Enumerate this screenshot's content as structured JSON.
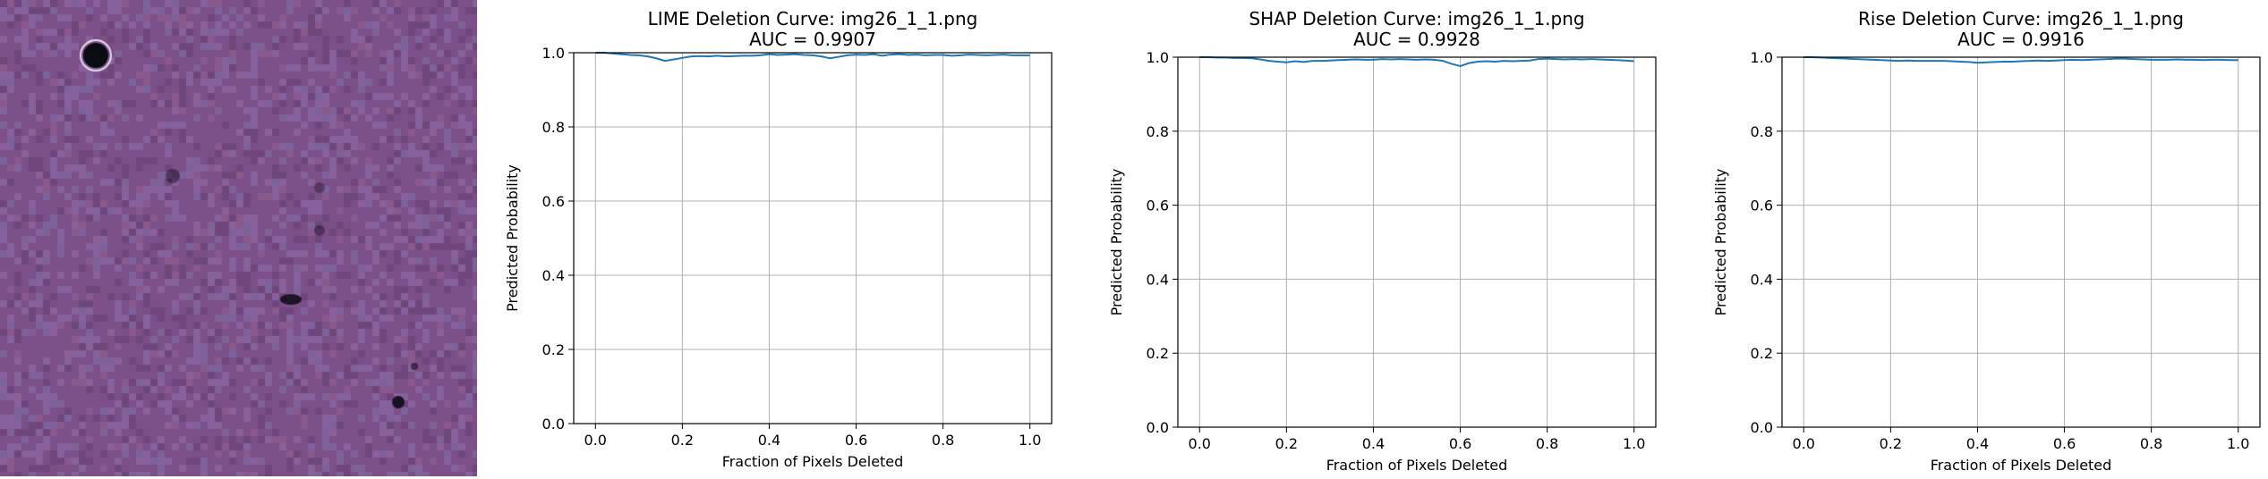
{
  "image_panel": {
    "description_colors": {
      "base": "#7b4f88",
      "dark_spot": "#0b0b14"
    }
  },
  "chart_data": [
    {
      "type": "line",
      "title": "LIME Deletion Curve: img26_1_1.png",
      "subtitle": "AUC = 0.9907",
      "xlabel": "Fraction of Pixels Deleted",
      "ylabel": "Predicted Probability",
      "xlim": [
        -0.05,
        1.05
      ],
      "ylim": [
        0.0,
        1.0
      ],
      "xticks": [
        "0.0",
        "0.2",
        "0.4",
        "0.6",
        "0.8",
        "1.0"
      ],
      "yticks": [
        "0.0",
        "0.2",
        "0.4",
        "0.6",
        "0.8",
        "1.0"
      ],
      "grid": true,
      "series": [
        {
          "color": "#1f77b4",
          "x": [
            0.0,
            0.02,
            0.04,
            0.06,
            0.08,
            0.1,
            0.12,
            0.14,
            0.16,
            0.18,
            0.2,
            0.22,
            0.24,
            0.26,
            0.28,
            0.3,
            0.32,
            0.34,
            0.36,
            0.38,
            0.4,
            0.42,
            0.44,
            0.46,
            0.48,
            0.5,
            0.52,
            0.54,
            0.56,
            0.58,
            0.6,
            0.62,
            0.64,
            0.66,
            0.68,
            0.7,
            0.72,
            0.74,
            0.76,
            0.78,
            0.8,
            0.82,
            0.84,
            0.86,
            0.88,
            0.9,
            0.92,
            0.94,
            0.96,
            0.98,
            1.0
          ],
          "y": [
            1.0,
            1.0,
            0.998,
            0.996,
            0.994,
            0.993,
            0.99,
            0.985,
            0.978,
            0.982,
            0.986,
            0.99,
            0.991,
            0.99,
            0.992,
            0.99,
            0.991,
            0.992,
            0.992,
            0.993,
            0.996,
            0.994,
            0.995,
            0.996,
            0.994,
            0.993,
            0.99,
            0.985,
            0.989,
            0.993,
            0.995,
            0.994,
            0.996,
            0.992,
            0.995,
            0.996,
            0.994,
            0.995,
            0.993,
            0.994,
            0.994,
            0.992,
            0.993,
            0.995,
            0.994,
            0.993,
            0.994,
            0.995,
            0.993,
            0.993,
            0.993
          ]
        }
      ]
    },
    {
      "type": "line",
      "title": "SHAP Deletion Curve: img26_1_1.png",
      "subtitle": "AUC = 0.9928",
      "xlabel": "Fraction of Pixels Deleted",
      "ylabel": "Predicted Probability",
      "xlim": [
        -0.05,
        1.05
      ],
      "ylim": [
        0.0,
        1.0
      ],
      "xticks": [
        "0.0",
        "0.2",
        "0.4",
        "0.6",
        "0.8",
        "1.0"
      ],
      "yticks": [
        "0.0",
        "0.2",
        "0.4",
        "0.6",
        "0.8",
        "1.0"
      ],
      "grid": true,
      "series": [
        {
          "color": "#1f77b4",
          "x": [
            0.0,
            0.02,
            0.04,
            0.06,
            0.08,
            0.1,
            0.12,
            0.14,
            0.16,
            0.18,
            0.2,
            0.22,
            0.24,
            0.26,
            0.28,
            0.3,
            0.32,
            0.34,
            0.36,
            0.38,
            0.4,
            0.42,
            0.44,
            0.46,
            0.48,
            0.5,
            0.52,
            0.54,
            0.56,
            0.58,
            0.6,
            0.62,
            0.64,
            0.66,
            0.68,
            0.7,
            0.72,
            0.74,
            0.76,
            0.78,
            0.8,
            0.82,
            0.84,
            0.86,
            0.88,
            0.9,
            0.92,
            0.94,
            0.96,
            0.98,
            1.0
          ],
          "y": [
            1.0,
            1.0,
            0.999,
            0.999,
            0.998,
            0.998,
            0.997,
            0.994,
            0.99,
            0.988,
            0.986,
            0.989,
            0.987,
            0.99,
            0.99,
            0.991,
            0.992,
            0.993,
            0.994,
            0.993,
            0.993,
            0.995,
            0.994,
            0.995,
            0.994,
            0.993,
            0.994,
            0.993,
            0.99,
            0.982,
            0.976,
            0.984,
            0.988,
            0.989,
            0.988,
            0.99,
            0.989,
            0.99,
            0.991,
            0.995,
            0.996,
            0.995,
            0.994,
            0.995,
            0.994,
            0.995,
            0.994,
            0.993,
            0.992,
            0.991,
            0.989
          ]
        }
      ]
    },
    {
      "type": "line",
      "title": "Rise Deletion Curve: img26_1_1.png",
      "subtitle": "AUC = 0.9916",
      "xlabel": "Fraction of Pixels Deleted",
      "ylabel": "Predicted Probability",
      "xlim": [
        -0.05,
        1.05
      ],
      "ylim": [
        0.0,
        1.0
      ],
      "xticks": [
        "0.0",
        "0.2",
        "0.4",
        "0.6",
        "0.8",
        "1.0"
      ],
      "yticks": [
        "0.0",
        "0.2",
        "0.4",
        "0.6",
        "0.8",
        "1.0"
      ],
      "grid": true,
      "series": [
        {
          "color": "#1f77b4",
          "x": [
            0.0,
            0.02,
            0.04,
            0.06,
            0.08,
            0.1,
            0.12,
            0.14,
            0.16,
            0.18,
            0.2,
            0.22,
            0.24,
            0.26,
            0.28,
            0.3,
            0.32,
            0.34,
            0.36,
            0.38,
            0.4,
            0.42,
            0.44,
            0.46,
            0.48,
            0.5,
            0.52,
            0.54,
            0.56,
            0.58,
            0.6,
            0.62,
            0.64,
            0.66,
            0.68,
            0.7,
            0.72,
            0.74,
            0.76,
            0.78,
            0.8,
            0.82,
            0.84,
            0.86,
            0.88,
            0.9,
            0.92,
            0.94,
            0.96,
            0.98,
            1.0
          ],
          "y": [
            1.0,
            1.0,
            0.999,
            0.998,
            0.997,
            0.996,
            0.995,
            0.994,
            0.993,
            0.992,
            0.991,
            0.99,
            0.991,
            0.99,
            0.99,
            0.99,
            0.99,
            0.989,
            0.988,
            0.987,
            0.985,
            0.986,
            0.987,
            0.988,
            0.988,
            0.989,
            0.99,
            0.991,
            0.99,
            0.991,
            0.992,
            0.993,
            0.992,
            0.993,
            0.994,
            0.995,
            0.996,
            0.996,
            0.995,
            0.994,
            0.993,
            0.993,
            0.993,
            0.994,
            0.993,
            0.993,
            0.992,
            0.993,
            0.993,
            0.992,
            0.992
          ]
        }
      ]
    }
  ]
}
